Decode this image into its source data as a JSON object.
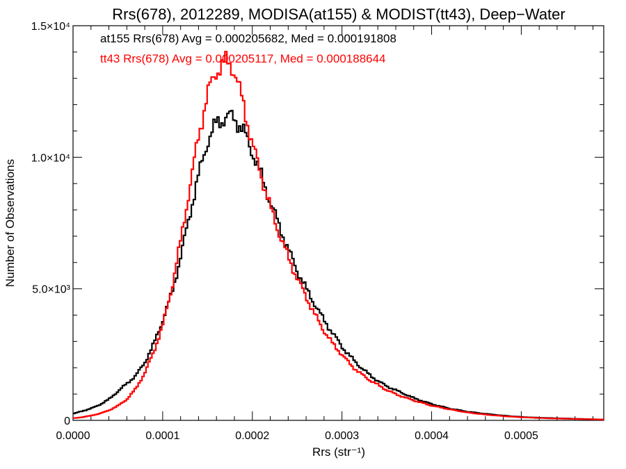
{
  "chart_data": {
    "type": "line",
    "title": "Rrs(678), 2012289, MODISA(at155) & MODIST(tt43), Deep−Water",
    "xlabel": "Rrs (str⁻¹)",
    "ylabel": "Number of Observations",
    "xlim": [
      0.0,
      0.000592
    ],
    "ylim": [
      0,
      15000
    ],
    "x_ticks": [
      {
        "value": 0.0,
        "label": "0.0000"
      },
      {
        "value": 0.0001,
        "label": "0.0001"
      },
      {
        "value": 0.0002,
        "label": "0.0002"
      },
      {
        "value": 0.0003,
        "label": "0.0003"
      },
      {
        "value": 0.0004,
        "label": "0.0004"
      },
      {
        "value": 0.0005,
        "label": "0.0005"
      }
    ],
    "y_ticks": [
      {
        "value": 0,
        "label": "0"
      },
      {
        "value": 5000,
        "label": "5.0×10³"
      },
      {
        "value": 10000,
        "label": "1.0×10⁴"
      },
      {
        "value": 15000,
        "label": "1.5×10⁴"
      }
    ],
    "annotations": [
      {
        "text": "at155 Rrs(678) Avg = 0.000205682, Med = 0.000191808",
        "color": "#000000"
      },
      {
        "text": "tt43 Rrs(678) Avg = 0.000205117, Med = 0.000188644",
        "color": "#ff0000"
      }
    ],
    "x": [
      0.0,
      1e-05,
      2e-05,
      3e-05,
      4e-05,
      5e-05,
      6e-05,
      7e-05,
      8e-05,
      9e-05,
      0.0001,
      0.00011,
      0.00012,
      0.00013,
      0.00014,
      0.00015,
      0.00016,
      0.00017,
      0.000175,
      0.00018,
      0.00019,
      0.0002,
      0.00021,
      0.00022,
      0.00023,
      0.00024,
      0.00025,
      0.00026,
      0.00027,
      0.00028,
      0.00029,
      0.0003,
      0.00031,
      0.00032,
      0.00033,
      0.00034,
      0.00035,
      0.00036,
      0.00037,
      0.00038,
      0.0004,
      0.00042,
      0.00044,
      0.00046,
      0.00048,
      0.0005,
      0.00052,
      0.00054,
      0.00056,
      0.00058,
      0.000592
    ],
    "series": [
      {
        "name": "at155",
        "color": "#000000",
        "values": [
          250,
          350,
          450,
          600,
          800,
          1100,
          1400,
          1700,
          2200,
          2900,
          3800,
          4800,
          6200,
          7800,
          9300,
          10600,
          11300,
          11500,
          11550,
          11500,
          11000,
          10200,
          9300,
          8300,
          7400,
          6500,
          5700,
          5000,
          4400,
          3800,
          3300,
          2800,
          2400,
          2050,
          1750,
          1500,
          1300,
          1150,
          1000,
          850,
          620,
          450,
          330,
          250,
          180,
          130,
          100,
          80,
          60,
          40,
          30
        ]
      },
      {
        "name": "tt43",
        "color": "#ff0000",
        "values": [
          80,
          120,
          180,
          260,
          380,
          550,
          800,
          1200,
          1800,
          2600,
          3600,
          5000,
          6800,
          8800,
          10800,
          12400,
          13300,
          13600,
          13550,
          13300,
          12000,
          10500,
          9300,
          8100,
          7100,
          6200,
          5400,
          4700,
          4000,
          3400,
          2900,
          2500,
          2100,
          1800,
          1550,
          1350,
          1150,
          1000,
          870,
          760,
          560,
          420,
          300,
          220,
          160,
          120,
          90,
          70,
          55,
          40,
          30
        ]
      }
    ]
  }
}
